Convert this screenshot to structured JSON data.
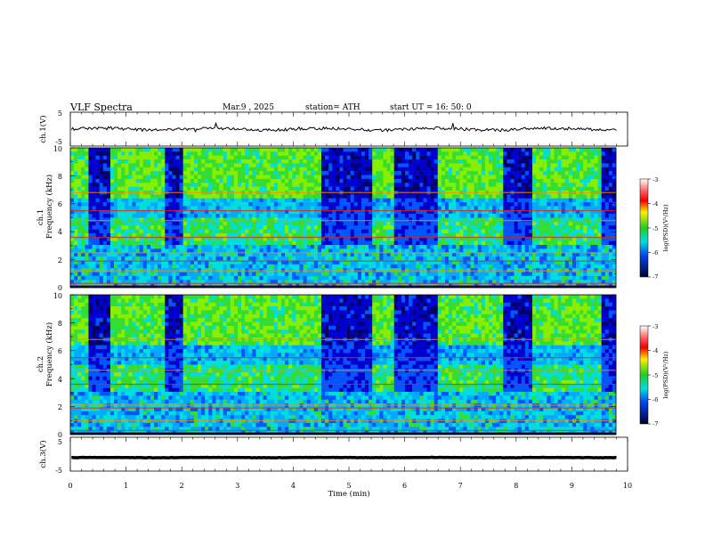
{
  "header": {
    "title": "VLF  Spectra",
    "date": "Mar.9  , 2025",
    "station": "station= ATH",
    "start_ut": "start  UT  =   16: 50: 0"
  },
  "chart_data": [
    {
      "type": "line",
      "name": "ch1-waveform",
      "ylabel": "ch.1(V)",
      "y_ticks": [
        "5",
        "-5"
      ],
      "ylim": [
        -5,
        5
      ],
      "xlim": [
        0,
        10
      ],
      "baseline_value": 0,
      "color": "#000000"
    },
    {
      "type": "heatmap",
      "name": "ch1-spectrogram",
      "ylabel": [
        "ch.1",
        "Frequency  (kHz)"
      ],
      "y_ticks": [
        "0",
        "2",
        "4",
        "6",
        "8",
        "10"
      ],
      "ylim": [
        0,
        10
      ],
      "xlim": [
        0,
        10
      ],
      "colorbar": {
        "label": "log(PSD)(V²/Hz)",
        "ticks": [
          "-3",
          "-4",
          "-5",
          "-6",
          "-7"
        ],
        "range": [
          -7,
          -3
        ]
      },
      "quiet_intervals_min": [
        [
          0.3,
          0.7
        ],
        [
          1.7,
          2.0
        ],
        [
          4.5,
          5.4
        ],
        [
          5.8,
          6.6
        ],
        [
          7.8,
          8.3
        ],
        [
          9.5,
          9.8
        ]
      ],
      "lines_khz": [
        0.3,
        1.2,
        1.9,
        2.5,
        3.6,
        4.8,
        5.5,
        6.8
      ]
    },
    {
      "type": "heatmap",
      "name": "ch2-spectrogram",
      "ylabel": [
        "ch.2",
        "Frequency  (kHz)"
      ],
      "y_ticks": [
        "0",
        "2",
        "4",
        "6",
        "8",
        "10"
      ],
      "ylim": [
        0,
        10
      ],
      "xlim": [
        0,
        10
      ],
      "colorbar": {
        "label": "log(PSD)(V²/Hz)",
        "ticks": [
          "-3",
          "-4",
          "-5",
          "-6",
          "-7"
        ],
        "range": [
          -7,
          -3
        ]
      },
      "quiet_intervals_min": [
        [
          0.3,
          0.7
        ],
        [
          1.7,
          2.0
        ],
        [
          4.5,
          5.4
        ],
        [
          5.8,
          6.6
        ],
        [
          7.8,
          8.3
        ],
        [
          9.5,
          9.8
        ]
      ],
      "lines_khz": [
        0.3,
        1.0,
        1.9,
        2.1,
        3.6,
        4.6,
        5.5,
        6.8
      ]
    },
    {
      "type": "line",
      "name": "ch3-waveform",
      "ylabel": "ch.3(V)",
      "y_ticks": [
        "5",
        "-5"
      ],
      "ylim": [
        -5,
        5
      ],
      "xlim": [
        0,
        10
      ],
      "baseline_value": -1,
      "color": "#000000"
    }
  ],
  "x_axis": {
    "label": "Time  (min)",
    "ticks": [
      "0",
      "1",
      "2",
      "3",
      "4",
      "5",
      "6",
      "7",
      "8",
      "9",
      "10"
    ],
    "range": [
      0,
      10
    ]
  }
}
